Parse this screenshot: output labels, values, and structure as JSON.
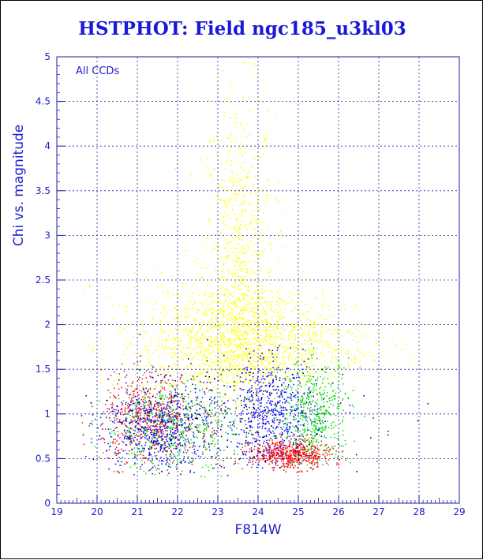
{
  "chart_data": {
    "type": "scatter",
    "title": "HSTPHOT: Field ngc185_u3kl03",
    "xlabel": "F814W",
    "ylabel": "Chi vs. magnitude",
    "annotation": "All CCDs",
    "xlim": [
      19,
      29
    ],
    "ylim": [
      0,
      5
    ],
    "x_ticks": [
      "19",
      "20",
      "21",
      "22",
      "23",
      "24",
      "25",
      "26",
      "27",
      "28",
      "29"
    ],
    "y_ticks": [
      "0",
      "0.5",
      "1",
      "1.5",
      "2",
      "2.5",
      "3",
      "3.5",
      "4",
      "4.5",
      "5"
    ],
    "grid": true,
    "colors": {
      "axis": "#1c1c9c",
      "text": "#2020c8",
      "title": "#1a1ad6"
    },
    "series": [
      {
        "color": "#ffff00",
        "clusters": [
          {
            "x_center": 23.5,
            "x_spread": 0.45,
            "y_center": 2.6,
            "y_spread": 1.0,
            "y_min": 0.3,
            "y_max": 5.0
          },
          {
            "x_center": 23.0,
            "x_spread": 1.3,
            "y_center": 1.8,
            "y_spread": 0.35,
            "y_min": 1.3,
            "y_max": 5.0
          },
          {
            "x_center": 24.2,
            "x_spread": 1.3,
            "y_center": 1.8,
            "y_spread": 0.3,
            "y_min": 1.3,
            "y_max": 5.0
          }
        ]
      },
      {
        "color": "#ff0000",
        "clusters": [
          {
            "x_center": 21.3,
            "x_spread": 0.6,
            "y_center": 0.95,
            "y_spread": 0.25,
            "y_min": 0.35,
            "y_max": 1.6
          },
          {
            "x_center": 24.8,
            "x_spread": 0.5,
            "y_center": 0.55,
            "y_spread": 0.08,
            "y_min": 0.35,
            "y_max": 0.8
          }
        ]
      },
      {
        "color": "#00dd00",
        "clusters": [
          {
            "x_center": 21.8,
            "x_spread": 0.8,
            "y_center": 0.85,
            "y_spread": 0.25,
            "y_min": 0.3,
            "y_max": 1.6
          },
          {
            "x_center": 25.4,
            "x_spread": 0.45,
            "y_center": 1.0,
            "y_spread": 0.3,
            "y_min": 0.4,
            "y_max": 1.8
          }
        ]
      },
      {
        "color": "#0000ff",
        "clusters": [
          {
            "x_center": 24.3,
            "x_spread": 0.55,
            "y_center": 1.0,
            "y_spread": 0.3,
            "y_min": 0.4,
            "y_max": 1.8
          },
          {
            "x_center": 21.5,
            "x_spread": 0.7,
            "y_center": 0.85,
            "y_spread": 0.25,
            "y_min": 0.3,
            "y_max": 1.5
          }
        ]
      },
      {
        "color": "#000000",
        "clusters": [
          {
            "x_center": 23.0,
            "x_spread": 1.9,
            "y_center": 1.0,
            "y_spread": 0.35,
            "y_min": 0.3,
            "y_max": 2.2
          }
        ]
      }
    ]
  }
}
